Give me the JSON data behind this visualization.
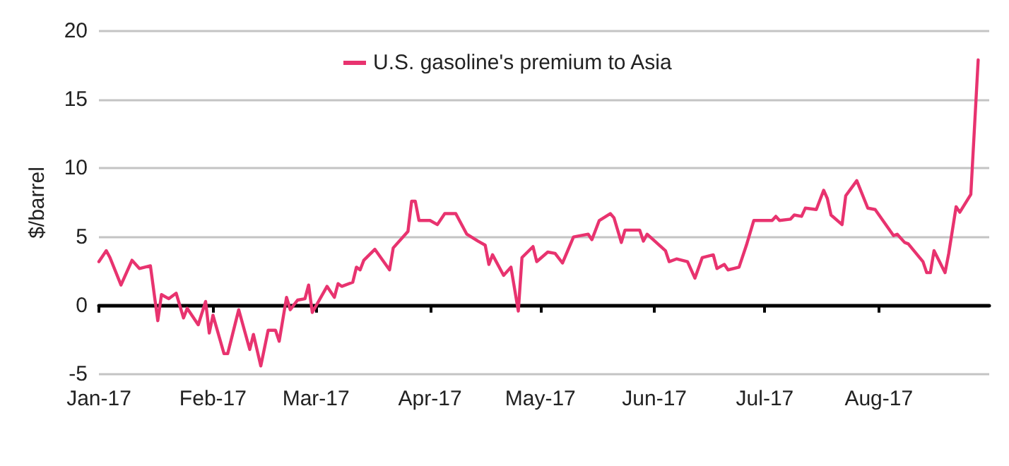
{
  "chart_data": {
    "type": "line",
    "ylabel": "$/barrel",
    "legend": "top",
    "grid": "y",
    "marker": "none",
    "line_style": "solid",
    "xlim": [
      "2017-01-01",
      "2017-08-31"
    ],
    "xticks": [
      {
        "value": "2017-01-01",
        "label": "Jan-17"
      },
      {
        "value": "2017-02-01",
        "label": "Feb-17"
      },
      {
        "value": "2017-03-01",
        "label": "Mar-17"
      },
      {
        "value": "2017-04-01",
        "label": "Apr-17"
      },
      {
        "value": "2017-05-01",
        "label": "May-17"
      },
      {
        "value": "2017-06-01",
        "label": "Jun-17"
      },
      {
        "value": "2017-07-01",
        "label": "Jul-17"
      },
      {
        "value": "2017-08-01",
        "label": "Aug-17"
      }
    ],
    "ylim": [
      -5,
      20
    ],
    "yticks": [
      -5,
      0,
      5,
      10,
      15,
      20
    ],
    "x": [
      "2017-01-01",
      "2017-01-03",
      "2017-01-04",
      "2017-01-07",
      "2017-01-10",
      "2017-01-12",
      "2017-01-15",
      "2017-01-17",
      "2017-01-18",
      "2017-01-20",
      "2017-01-22",
      "2017-01-24",
      "2017-01-25",
      "2017-01-28",
      "2017-01-30",
      "2017-01-31",
      "2017-02-01",
      "2017-02-04",
      "2017-02-05",
      "2017-02-08",
      "2017-02-11",
      "2017-02-12",
      "2017-02-14",
      "2017-02-16",
      "2017-02-18",
      "2017-02-19",
      "2017-02-21",
      "2017-02-22",
      "2017-02-24",
      "2017-02-26",
      "2017-02-27",
      "2017-02-28",
      "2017-03-04",
      "2017-03-06",
      "2017-03-07",
      "2017-03-08",
      "2017-03-11",
      "2017-03-12",
      "2017-03-13",
      "2017-03-14",
      "2017-03-17",
      "2017-03-21",
      "2017-03-22",
      "2017-03-26",
      "2017-03-27",
      "2017-03-28",
      "2017-03-29",
      "2017-04-01",
      "2017-04-03",
      "2017-04-05",
      "2017-04-08",
      "2017-04-11",
      "2017-04-14",
      "2017-04-16",
      "2017-04-17",
      "2017-04-18",
      "2017-04-21",
      "2017-04-23",
      "2017-04-25",
      "2017-04-26",
      "2017-04-29",
      "2017-04-30",
      "2017-05-03",
      "2017-05-05",
      "2017-05-07",
      "2017-05-10",
      "2017-05-14",
      "2017-05-15",
      "2017-05-17",
      "2017-05-20",
      "2017-05-21",
      "2017-05-23",
      "2017-05-24",
      "2017-05-28",
      "2017-05-29",
      "2017-05-30",
      "2017-06-04",
      "2017-06-05",
      "2017-06-07",
      "2017-06-10",
      "2017-06-12",
      "2017-06-14",
      "2017-06-17",
      "2017-06-18",
      "2017-06-20",
      "2017-06-21",
      "2017-06-24",
      "2017-06-26",
      "2017-06-28",
      "2017-07-03",
      "2017-07-04",
      "2017-07-05",
      "2017-07-08",
      "2017-07-09",
      "2017-07-11",
      "2017-07-12",
      "2017-07-15",
      "2017-07-17",
      "2017-07-18",
      "2017-07-19",
      "2017-07-22",
      "2017-07-23",
      "2017-07-26",
      "2017-07-29",
      "2017-07-31",
      "2017-08-05",
      "2017-08-06",
      "2017-08-08",
      "2017-08-09",
      "2017-08-13",
      "2017-08-14",
      "2017-08-15",
      "2017-08-16",
      "2017-08-19",
      "2017-08-20",
      "2017-08-22",
      "2017-08-23",
      "2017-08-26",
      "2017-08-28"
    ],
    "series": [
      {
        "name": "U.S. gasoline's premium to Asia",
        "color": "#e8336f",
        "values": [
          3.2,
          4.0,
          3.5,
          1.5,
          3.3,
          2.7,
          2.9,
          -1.1,
          0.8,
          0.5,
          0.9,
          -0.9,
          -0.2,
          -1.4,
          0.3,
          -2.0,
          -0.7,
          -3.5,
          -3.5,
          -0.3,
          -3.2,
          -2.1,
          -4.4,
          -1.8,
          -1.8,
          -2.6,
          0.6,
          -0.3,
          0.4,
          0.5,
          1.5,
          -0.5,
          1.4,
          0.6,
          1.6,
          1.4,
          1.7,
          2.8,
          2.6,
          3.3,
          4.1,
          2.6,
          4.2,
          5.4,
          7.6,
          7.6,
          6.2,
          6.2,
          5.9,
          6.7,
          6.7,
          5.2,
          4.7,
          4.4,
          3.0,
          3.7,
          2.2,
          2.8,
          -0.4,
          3.5,
          4.3,
          3.2,
          3.9,
          3.8,
          3.1,
          5.0,
          5.2,
          4.8,
          6.2,
          6.7,
          6.4,
          4.6,
          5.5,
          5.5,
          4.7,
          5.2,
          4.0,
          3.2,
          3.4,
          3.2,
          2.0,
          3.5,
          3.7,
          2.7,
          3.0,
          2.6,
          2.8,
          4.4,
          6.2,
          6.2,
          6.5,
          6.2,
          6.3,
          6.6,
          6.5,
          7.1,
          7.0,
          8.4,
          7.8,
          6.6,
          5.9,
          8.0,
          9.1,
          7.1,
          7.0,
          5.1,
          5.2,
          4.6,
          4.5,
          3.2,
          2.4,
          2.4,
          4.0,
          2.4,
          3.8,
          7.2,
          6.8,
          8.1,
          17.9
        ]
      }
    ]
  }
}
